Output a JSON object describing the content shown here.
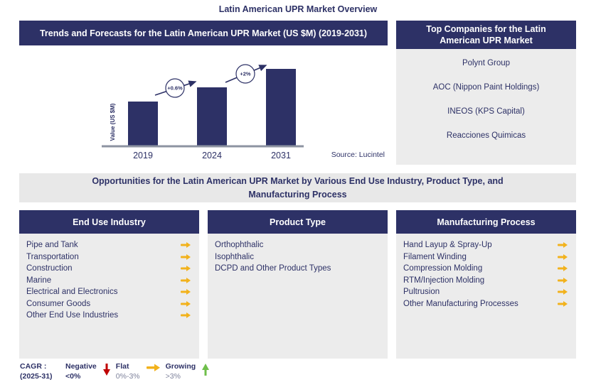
{
  "page": {
    "title": "Latin American UPR Market Overview"
  },
  "colors": {
    "navy": "#2d3166",
    "panel_gray": "#ececec",
    "band_gray": "#e8e8e8",
    "flat_yellow": "#f2b21c",
    "negative_red": "#c00000",
    "growing_green": "#6fbf4b",
    "axis_gray": "#8d93a1"
  },
  "trends_panel": {
    "header": "Trends and Forecasts for the Latin American UPR Market (US $M) (2019-2031)",
    "source": "Source: Lucintel"
  },
  "chart_data": {
    "type": "bar",
    "title": "Trends and Forecasts for the Latin American UPR Market (US $M) (2019-2031)",
    "categories": [
      "2019",
      "2024",
      "2031"
    ],
    "values": [
      63,
      83,
      109
    ],
    "values_note": "relative bar heights, no numeric y-axis shown",
    "growth_labels": [
      "+0.6%",
      "+2%"
    ],
    "xlabel": "",
    "ylabel": "Value (US $M)",
    "grid": false,
    "bar_color": "#2d3166",
    "source": "Source: Lucintel"
  },
  "top_companies": {
    "header": "Top Companies for the Latin American UPR Market",
    "companies": [
      "Polynt Group",
      "AOC (Nippon Paint Holdings)",
      "INEOS (KPS Capital)",
      "Reacciones Quimicas"
    ]
  },
  "opportunities_band": {
    "text": "Opportunities for the Latin American UPR Market by Various End Use Industry, Product Type, and Manufacturing Process"
  },
  "columns": [
    {
      "header": "End Use Industry",
      "items": [
        {
          "label": "Pipe and Tank",
          "arrow": true
        },
        {
          "label": "Transportation",
          "arrow": true
        },
        {
          "label": "Construction",
          "arrow": true
        },
        {
          "label": "Marine",
          "arrow": true
        },
        {
          "label": "Electrical and Electronics",
          "arrow": true
        },
        {
          "label": "Consumer Goods",
          "arrow": true
        },
        {
          "label": "Other End Use Industries",
          "arrow": true
        }
      ]
    },
    {
      "header": "Product Type",
      "items": [
        {
          "label": "Orthophthalic",
          "arrow": false
        },
        {
          "label": "Isophthalic",
          "arrow": false
        },
        {
          "label": "DCPD and Other Product Types",
          "arrow": false
        }
      ]
    },
    {
      "header": "Manufacturing Process",
      "items": [
        {
          "label": "Hand Layup & Spray-Up",
          "arrow": true
        },
        {
          "label": "Filament Winding",
          "arrow": true
        },
        {
          "label": "Compression Molding",
          "arrow": true
        },
        {
          "label": "RTM/Injection Molding",
          "arrow": true
        },
        {
          "label": "Pultrusion",
          "arrow": true
        },
        {
          "label": "Other Manufacturing Processes",
          "arrow": true
        }
      ]
    }
  ],
  "legend": {
    "title_line1": "CAGR :",
    "title_line2": "(2025-31)",
    "negative": {
      "label": "Negative",
      "range": "<0%"
    },
    "flat": {
      "label": "Flat",
      "range": "0%-3%"
    },
    "growing": {
      "label": "Growing",
      "range": ">3%"
    }
  }
}
